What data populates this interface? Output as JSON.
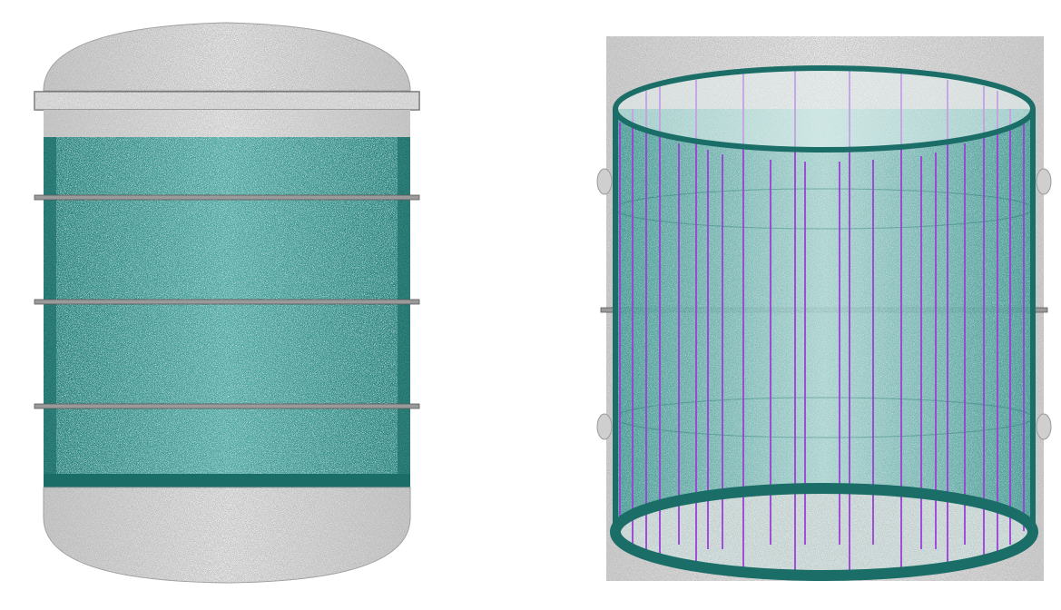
{
  "scene": {
    "colors": {
      "background": "#ffffff",
      "vessel_shell": "#8c8c8c",
      "vessel_shell_light": "#e6e6e6",
      "teal_fill": "#2a8f88",
      "teal_dark": "#1b6d68",
      "purple_lines": "#9b3fd6",
      "flange": "#8a8a8a"
    },
    "views": [
      {
        "name": "side-view",
        "description_label": ""
      },
      {
        "name": "perspective-view",
        "description_label": ""
      }
    ]
  }
}
